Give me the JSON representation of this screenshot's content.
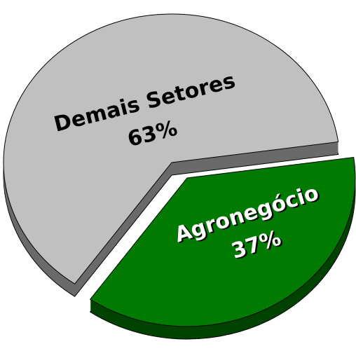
{
  "chart_data": {
    "type": "pie",
    "categories": [
      "Demais Setores",
      "Agronegócio"
    ],
    "values": [
      63,
      37
    ],
    "value_labels": [
      "63%",
      "37%"
    ],
    "colors": [
      "#c0c0c0",
      "#007a00"
    ]
  }
}
